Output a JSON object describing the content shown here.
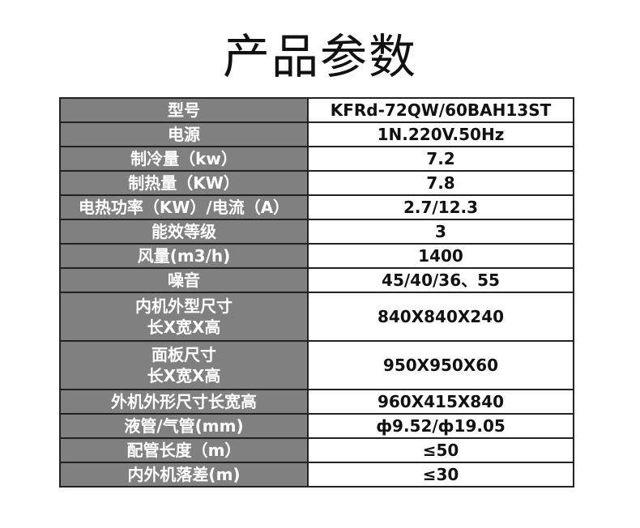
{
  "title": "产品参数",
  "rows": [
    {
      "label": [
        "型号"
      ],
      "value": "KFRd-72QW/60BAH13ST"
    },
    {
      "label": [
        "电源"
      ],
      "value": "1N.220V.50Hz"
    },
    {
      "label": [
        "制冷量（kw）"
      ],
      "value": "7.2"
    },
    {
      "label": [
        "制热量（KW）"
      ],
      "value": "7.8"
    },
    {
      "label": [
        "电热功率（KW）/电流（A）"
      ],
      "value": "2.7/12.3"
    },
    {
      "label": [
        "能效等级"
      ],
      "value": "3"
    },
    {
      "label": [
        "风量(m3/h)"
      ],
      "value": "1400"
    },
    {
      "label": [
        "噪音"
      ],
      "value": "45/40/36、55"
    },
    {
      "label": [
        "内机外型尺寸",
        "长X宽X高"
      ],
      "value": "840X840X240"
    },
    {
      "label": [
        "面板尺寸",
        "长X宽X高"
      ],
      "value": "950X950X60"
    },
    {
      "label": [
        "外机外形尺寸长宽高"
      ],
      "value": "960X415X840"
    },
    {
      "label": [
        "液管/气管(mm)"
      ],
      "value": "ф9.52/ф19.05"
    },
    {
      "label": [
        "配管长度（m）"
      ],
      "value": "≤50"
    },
    {
      "label": [
        "内外机落差(m)"
      ],
      "value": "≤30"
    }
  ]
}
